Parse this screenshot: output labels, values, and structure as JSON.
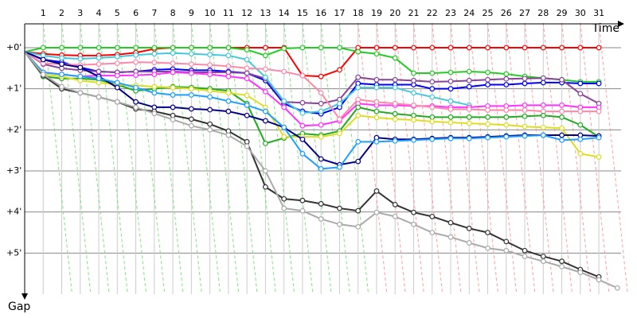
{
  "chart_data": {
    "type": "line",
    "x_label": "Time",
    "y_label": "Gap",
    "x": [
      0,
      1,
      2,
      3,
      4,
      5,
      6,
      7,
      8,
      9,
      10,
      11,
      12,
      13,
      14,
      15,
      16,
      17,
      18,
      19,
      20,
      21,
      22,
      23,
      24,
      25,
      26,
      27,
      28,
      29,
      30,
      31,
      32
    ],
    "xlim": [
      0,
      32.2
    ],
    "xticks": [
      1,
      2,
      3,
      4,
      5,
      6,
      7,
      8,
      9,
      10,
      11,
      12,
      13,
      14,
      15,
      16,
      17,
      18,
      19,
      20,
      21,
      22,
      23,
      24,
      25,
      26,
      27,
      28,
      29,
      30,
      31
    ],
    "ylim": [
      -0.6,
      6
    ],
    "yticks": [
      {
        "value": 0,
        "label": "+0'"
      },
      {
        "value": 1,
        "label": "+1'"
      },
      {
        "value": 2,
        "label": "+2'"
      },
      {
        "value": 3,
        "label": "+3'"
      },
      {
        "value": 4,
        "label": "+4'"
      },
      {
        "value": 5,
        "label": "+5'"
      }
    ],
    "y_inverted": true,
    "grid": true,
    "series": [
      {
        "color": "#ff0000",
        "values": [
          0.1,
          0.15,
          0.18,
          0.19,
          0.19,
          0.17,
          0.12,
          0.03,
          0,
          0,
          0,
          0,
          0,
          0,
          0,
          0.68,
          0.7,
          0.54,
          0,
          0,
          0,
          0,
          0,
          0,
          0,
          0,
          0,
          0,
          0,
          0,
          0,
          0,
          null
        ]
      },
      {
        "color": "#22cc22",
        "values": [
          0.1,
          0,
          0,
          0,
          0,
          0,
          0,
          0,
          0,
          0,
          0,
          0,
          0.05,
          0.19,
          0.02,
          0,
          0,
          0,
          0.1,
          0.15,
          0.25,
          0.62,
          0.62,
          0.6,
          0.58,
          0.6,
          0.64,
          0.7,
          0.74,
          0.78,
          0.83,
          0.83,
          null
        ]
      },
      {
        "color": "#0000ff",
        "values": [
          0.1,
          0.29,
          0.35,
          0.48,
          0.58,
          0.6,
          0.58,
          0.54,
          0.52,
          0.55,
          0.55,
          0.58,
          0.62,
          0.8,
          1.36,
          1.55,
          1.61,
          1.45,
          0.87,
          0.9,
          0.9,
          0.9,
          1.0,
          1.0,
          0.95,
          0.9,
          0.9,
          0.87,
          0.85,
          0.85,
          0.87,
          0.87,
          null
        ]
      },
      {
        "color": "#884499",
        "values": [
          0.1,
          0.4,
          0.5,
          0.55,
          0.58,
          0.6,
          0.58,
          0.58,
          0.58,
          0.6,
          0.6,
          0.6,
          0.62,
          0.75,
          1.32,
          1.34,
          1.36,
          1.26,
          0.72,
          0.78,
          0.78,
          0.8,
          0.83,
          0.82,
          0.8,
          0.78,
          0.76,
          0.75,
          0.74,
          0.78,
          1.12,
          1.36,
          null
        ]
      },
      {
        "color": "#44c8dd",
        "values": [
          0.1,
          0.19,
          0.25,
          0.27,
          0.25,
          0.22,
          0.18,
          0.15,
          0.13,
          0.15,
          0.17,
          0.19,
          0.29,
          0.72,
          1.3,
          1.59,
          1.55,
          1.36,
          0.97,
          0.97,
          0.97,
          1.1,
          1.2,
          1.3,
          1.4,
          null,
          null,
          null,
          null,
          null,
          null,
          null,
          null
        ]
      },
      {
        "color": "#ff33ff",
        "values": [
          0.1,
          0.6,
          0.65,
          0.7,
          0.68,
          0.68,
          0.67,
          0.65,
          0.6,
          0.62,
          0.65,
          0.7,
          0.75,
          1.07,
          1.45,
          1.9,
          1.88,
          1.78,
          1.36,
          1.4,
          1.4,
          1.42,
          1.42,
          1.45,
          1.45,
          1.42,
          1.42,
          1.4,
          1.4,
          1.4,
          1.45,
          1.45,
          null
        ]
      },
      {
        "color": "#ff88aa",
        "values": [
          0.1,
          0.38,
          0.4,
          0.42,
          0.4,
          0.38,
          0.35,
          0.36,
          0.38,
          0.4,
          0.42,
          0.45,
          0.5,
          0.52,
          0.58,
          0.68,
          1.1,
          1.74,
          1.26,
          1.32,
          1.36,
          1.4,
          1.45,
          1.5,
          1.5,
          1.52,
          1.52,
          1.52,
          1.55,
          1.55,
          1.55,
          1.55,
          null
        ]
      },
      {
        "color": "#22aa22",
        "values": [
          0.1,
          0.7,
          0.75,
          0.75,
          0.78,
          0.9,
          1.05,
          1.0,
          0.95,
          0.97,
          1.0,
          1.05,
          1.36,
          2.33,
          2.2,
          2.09,
          2.13,
          2.03,
          1.45,
          1.55,
          1.61,
          1.65,
          1.69,
          1.69,
          1.69,
          1.69,
          1.69,
          1.67,
          1.65,
          1.69,
          1.88,
          2.17,
          null
        ]
      },
      {
        "color": "#dddd22",
        "values": [
          0.1,
          0.65,
          0.7,
          0.8,
          0.85,
          0.9,
          0.92,
          0.95,
          0.97,
          1.0,
          1.05,
          1.1,
          1.16,
          1.45,
          2.17,
          2.17,
          2.17,
          2.09,
          1.65,
          1.7,
          1.74,
          1.76,
          1.8,
          1.82,
          1.84,
          1.86,
          1.88,
          1.92,
          1.94,
          1.96,
          2.58,
          2.66,
          null
        ]
      },
      {
        "color": "#000088",
        "values": [
          0.1,
          0.29,
          0.4,
          0.48,
          0.7,
          0.97,
          1.32,
          1.45,
          1.45,
          1.49,
          1.51,
          1.55,
          1.65,
          1.78,
          1.94,
          2.23,
          2.71,
          2.85,
          2.77,
          2.19,
          2.23,
          2.23,
          2.21,
          2.19,
          2.19,
          2.17,
          2.15,
          2.13,
          2.13,
          2.13,
          2.13,
          2.15,
          null
        ]
      },
      {
        "color": "#1e9fff",
        "values": [
          0.1,
          0.6,
          0.65,
          0.7,
          0.75,
          0.85,
          0.97,
          1.1,
          1.15,
          1.15,
          1.2,
          1.3,
          1.4,
          1.55,
          1.94,
          2.58,
          2.95,
          2.91,
          2.29,
          2.29,
          2.27,
          2.25,
          2.23,
          2.21,
          2.21,
          2.19,
          2.17,
          2.15,
          2.13,
          2.25,
          2.23,
          2.19,
          null
        ]
      },
      {
        "color": "#333333",
        "values": [
          0.1,
          0.68,
          1.0,
          1.1,
          1.2,
          1.32,
          1.49,
          1.55,
          1.65,
          1.74,
          1.86,
          2.03,
          2.29,
          3.39,
          3.68,
          3.72,
          3.8,
          3.91,
          3.97,
          3.49,
          3.82,
          4.01,
          4.11,
          4.26,
          4.4,
          4.5,
          4.72,
          4.94,
          5.08,
          5.2,
          5.4,
          5.58,
          null
        ]
      },
      {
        "color": "#aaaaaa",
        "values": [
          0.1,
          0.65,
          0.95,
          1.1,
          1.2,
          1.32,
          1.45,
          1.6,
          1.75,
          1.9,
          2.0,
          2.13,
          2.4,
          3.0,
          3.91,
          3.97,
          4.17,
          4.3,
          4.36,
          4.01,
          4.11,
          4.3,
          4.5,
          4.61,
          4.75,
          4.88,
          4.94,
          5.08,
          5.2,
          5.33,
          5.47,
          5.65,
          5.85
        ]
      }
    ]
  }
}
